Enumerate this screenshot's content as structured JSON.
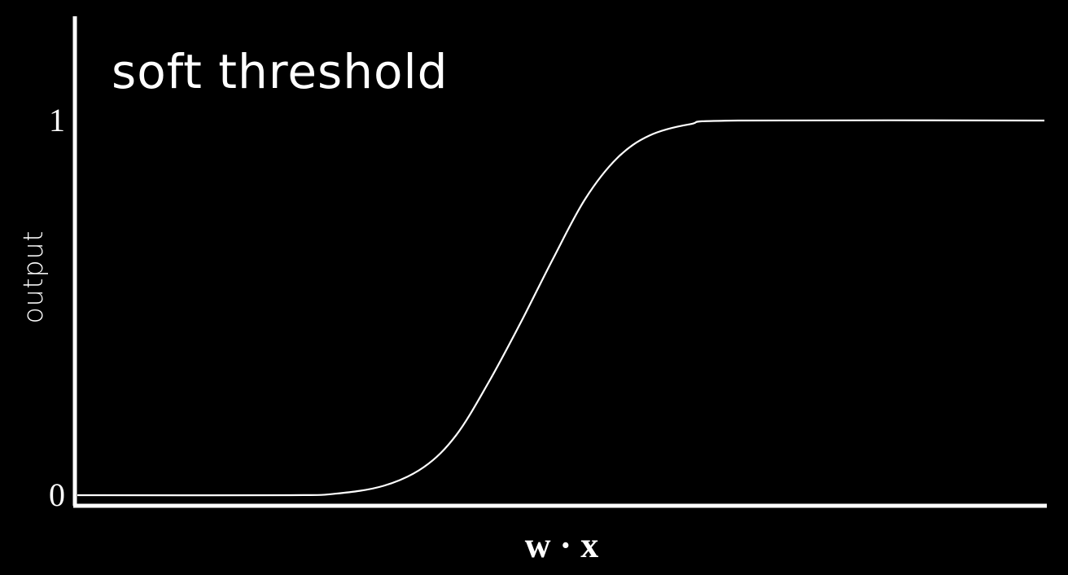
{
  "chart_data": {
    "type": "line",
    "title": "soft threshold",
    "xlabel": "w · x",
    "ylabel": "output",
    "ylim": [
      0,
      1
    ],
    "yticks": [
      {
        "value": 0,
        "label": "0"
      },
      {
        "value": 1,
        "label": "1"
      }
    ],
    "xlim": [
      -6,
      6
    ],
    "grid": false,
    "legend": "none",
    "series": [
      {
        "function": "sigmoid",
        "points": [
          [
            -6,
            0.0
          ],
          [
            -3.4,
            0.0
          ],
          [
            -2.8,
            0.004
          ],
          [
            -2.2,
            0.025
          ],
          [
            -1.7,
            0.075
          ],
          [
            -1.3,
            0.16
          ],
          [
            -0.9,
            0.3
          ],
          [
            -0.5,
            0.46
          ],
          [
            -0.1,
            0.63
          ],
          [
            0.3,
            0.79
          ],
          [
            0.7,
            0.9
          ],
          [
            1.1,
            0.96
          ],
          [
            1.6,
            0.99
          ],
          [
            2.2,
            1.0
          ],
          [
            6,
            1.0
          ]
        ]
      }
    ],
    "colors": {
      "background": "#000000",
      "axis": "#ffffff",
      "curve": "#ffffff",
      "text": "#ffffff"
    }
  }
}
